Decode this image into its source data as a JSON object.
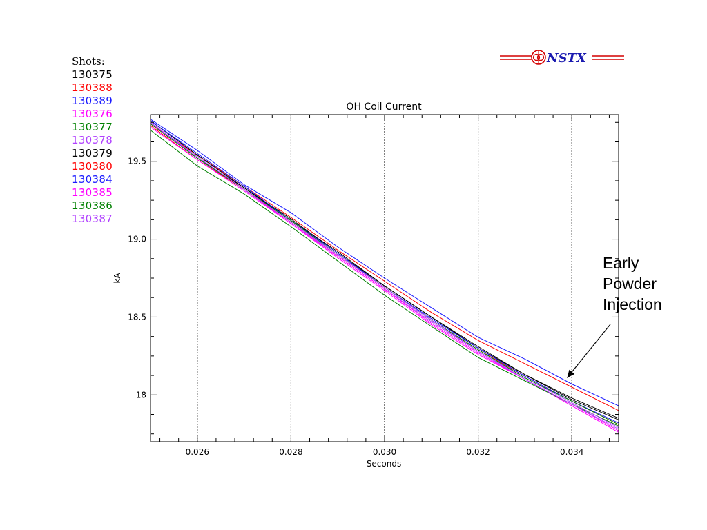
{
  "logo": {
    "text": "NSTX",
    "color": "#d40000",
    "text_color": "#1a1ab0"
  },
  "legend": {
    "heading": "Shots:",
    "entries": [
      {
        "label": "130375",
        "color": "#000000"
      },
      {
        "label": "130388",
        "color": "#ff0000"
      },
      {
        "label": "130389",
        "color": "#1a1aff"
      },
      {
        "label": "130376",
        "color": "#ff00ff"
      },
      {
        "label": "130377",
        "color": "#008000"
      },
      {
        "label": "130378",
        "color": "#b040ff"
      },
      {
        "label": "130379",
        "color": "#000000"
      },
      {
        "label": "130380",
        "color": "#ff0000"
      },
      {
        "label": "130384",
        "color": "#1a1aff"
      },
      {
        "label": "130385",
        "color": "#ff00ff"
      },
      {
        "label": "130386",
        "color": "#008000"
      },
      {
        "label": "130387",
        "color": "#b040ff"
      }
    ]
  },
  "annotation": {
    "lines": [
      "Early",
      "Powder",
      "Injection"
    ]
  },
  "chart_data": {
    "type": "line",
    "title": "OH Coil Current",
    "xlabel": "Seconds",
    "ylabel": "kA",
    "xlim": [
      0.025,
      0.035
    ],
    "ylim": [
      17.7,
      19.8
    ],
    "xticks": [
      0.026,
      0.028,
      0.03,
      0.032,
      0.034
    ],
    "xtick_labels": [
      "0.026",
      "0.028",
      "0.030",
      "0.032",
      "0.034"
    ],
    "yticks": [
      18.0,
      18.5,
      19.0,
      19.5
    ],
    "ytick_labels": [
      "18",
      "18.5",
      "19.0",
      "19.5"
    ],
    "vertical_dotted_lines": [
      0.026,
      0.028,
      0.03,
      0.032,
      0.034
    ],
    "annotation_arrow_target": {
      "x": 0.0339,
      "y": 18.11
    },
    "x": [
      0.025,
      0.026,
      0.027,
      0.028,
      0.029,
      0.03,
      0.031,
      0.032,
      0.033,
      0.034,
      0.035
    ],
    "series": [
      {
        "name": "130375",
        "color": "#000000",
        "values": [
          19.75,
          19.52,
          19.33,
          19.12,
          18.92,
          18.7,
          18.5,
          18.31,
          18.13,
          17.98,
          17.85
        ]
      },
      {
        "name": "130388",
        "color": "#ff0000",
        "values": [
          19.74,
          19.54,
          19.34,
          19.14,
          18.93,
          18.73,
          18.53,
          18.35,
          18.2,
          18.05,
          17.9
        ]
      },
      {
        "name": "130389",
        "color": "#1a1aff",
        "values": [
          19.77,
          19.57,
          19.35,
          19.17,
          18.95,
          18.75,
          18.56,
          18.37,
          18.23,
          18.07,
          17.93
        ]
      },
      {
        "name": "130376",
        "color": "#ff00ff",
        "values": [
          19.74,
          19.53,
          19.32,
          19.1,
          18.88,
          18.67,
          18.45,
          18.26,
          18.1,
          17.93,
          17.76
        ]
      },
      {
        "name": "130377",
        "color": "#008000",
        "values": [
          19.7,
          19.47,
          19.29,
          19.08,
          18.86,
          18.64,
          18.44,
          18.24,
          18.09,
          17.94,
          17.8
        ]
      },
      {
        "name": "130378",
        "color": "#b040ff",
        "values": [
          19.75,
          19.52,
          19.32,
          19.11,
          18.89,
          18.68,
          18.47,
          18.28,
          18.11,
          17.95,
          17.79
        ]
      },
      {
        "name": "130379",
        "color": "#000000",
        "values": [
          19.76,
          19.54,
          19.33,
          19.13,
          18.91,
          18.7,
          18.5,
          18.3,
          18.13,
          17.97,
          17.84
        ]
      },
      {
        "name": "130380",
        "color": "#ff0000",
        "values": [
          19.73,
          19.51,
          19.32,
          19.11,
          18.9,
          18.69,
          18.48,
          18.29,
          18.12,
          17.96,
          17.81
        ]
      },
      {
        "name": "130384",
        "color": "#1a1aff",
        "values": [
          19.76,
          19.55,
          19.34,
          19.12,
          18.91,
          18.69,
          18.49,
          18.3,
          18.12,
          17.96,
          17.82
        ]
      },
      {
        "name": "130385",
        "color": "#ff00ff",
        "values": [
          19.72,
          19.51,
          19.31,
          19.1,
          18.89,
          18.68,
          18.46,
          18.27,
          18.1,
          17.94,
          17.77
        ]
      },
      {
        "name": "130386",
        "color": "#008000",
        "values": [
          19.74,
          19.52,
          19.32,
          19.12,
          18.9,
          18.69,
          18.48,
          18.29,
          18.11,
          17.96,
          17.81
        ]
      },
      {
        "name": "130387",
        "color": "#b040ff",
        "values": [
          19.75,
          19.53,
          19.32,
          19.11,
          18.9,
          18.69,
          18.48,
          18.28,
          18.1,
          17.94,
          17.78
        ]
      }
    ]
  }
}
